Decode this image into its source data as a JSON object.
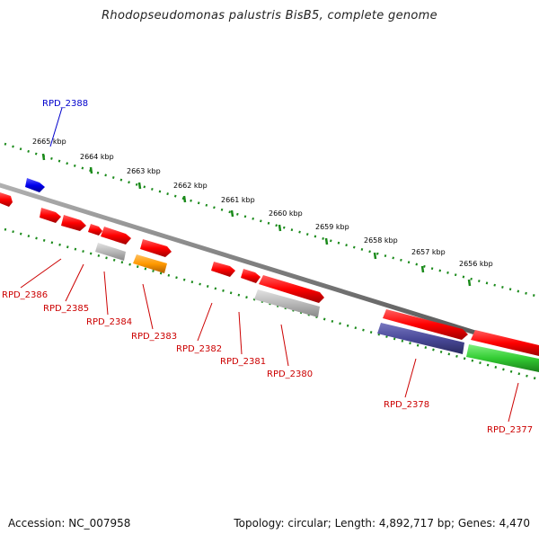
{
  "title": "Rhodopseudomonas palustris BisB5, complete genome",
  "footer": {
    "accession": "Accession: NC_007958",
    "topology": "Topology: circular; Length: 4,892,717 bp; Genes: 4,470"
  },
  "colors": {
    "backbone": "#7d7d7d",
    "tick": "#1a8a1a",
    "gene_red": "#ff0000",
    "gene_blue": "#0000ee",
    "gene_gray": "#b8b8b8",
    "gene_orange": "#ff9900",
    "gene_purple": "#4a4a9a",
    "gene_green": "#33cc33",
    "label_red": "#cc0000",
    "label_blue": "#0000cc"
  },
  "ticks": [
    "2665 kbp",
    "2664 kbp",
    "2663 kbp",
    "2662 kbp",
    "2661 kbp",
    "2660 kbp",
    "2659 kbp",
    "2658 kbp",
    "2657 kbp",
    "2656 kbp"
  ],
  "gene_labels": [
    {
      "id": "RPD_2388",
      "color": "blue"
    },
    {
      "id": "RPD_2386",
      "color": "red"
    },
    {
      "id": "RPD_2385",
      "color": "red"
    },
    {
      "id": "RPD_2384",
      "color": "red"
    },
    {
      "id": "RPD_2383",
      "color": "red"
    },
    {
      "id": "RPD_2382",
      "color": "red"
    },
    {
      "id": "RPD_2381",
      "color": "red"
    },
    {
      "id": "RPD_2380",
      "color": "red"
    },
    {
      "id": "RPD_2378",
      "color": "red"
    },
    {
      "id": "RPD_2377",
      "color": "red"
    }
  ]
}
